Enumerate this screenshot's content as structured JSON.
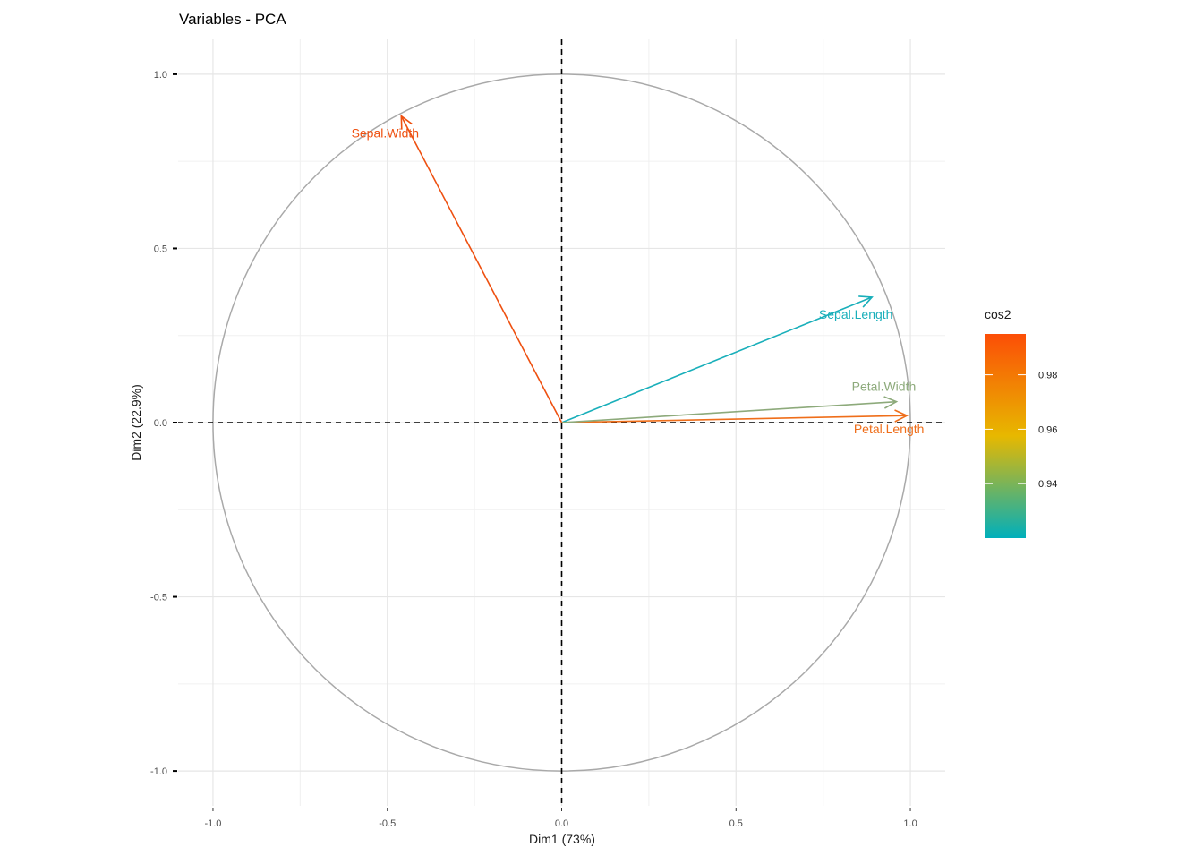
{
  "chart_data": {
    "type": "scatter",
    "title": "Variables - PCA",
    "xlabel": "Dim1 (73%)",
    "ylabel": "Dim2 (22.9%)",
    "xlim": [
      -1.1,
      1.1
    ],
    "ylim": [
      -1.1,
      1.1
    ],
    "x_ticks": [
      -1.0,
      -0.5,
      0.0,
      0.5,
      1.0
    ],
    "y_ticks": [
      -1.0,
      -0.5,
      0.0,
      0.5,
      1.0
    ],
    "x_tick_labels": [
      "-1.0",
      "-0.5",
      "0.0",
      "0.5",
      "1.0"
    ],
    "y_tick_labels": [
      "-1.0",
      "-0.5",
      "0.0",
      "0.5",
      "1.0"
    ],
    "grid": true,
    "correlation_circle": true,
    "reference_lines": "dashed lines at x = 0 and y = 0",
    "variables": [
      {
        "name": "Sepal.Length",
        "x": 0.89,
        "y": 0.36,
        "cos2": 0.922,
        "color": "#19AFBA"
      },
      {
        "name": "Sepal.Width",
        "x": -0.46,
        "y": 0.88,
        "cos2": 0.986,
        "color": "#EE5010"
      },
      {
        "name": "Petal.Length",
        "x": 0.99,
        "y": 0.02,
        "cos2": 0.984,
        "color": "#EF6E1A"
      },
      {
        "name": "Petal.Width",
        "x": 0.96,
        "y": 0.06,
        "cos2": 0.931,
        "color": "#8DAA7B"
      }
    ],
    "legend": {
      "title": "cos2",
      "position": "right",
      "ticks": [
        0.94,
        0.96,
        0.98
      ],
      "tick_labels": [
        "0.94",
        "0.96",
        "0.98"
      ],
      "range": [
        0.92,
        0.995
      ],
      "gradient": [
        "#00AFBB",
        "#E7B800",
        "#FC4E07"
      ]
    }
  }
}
